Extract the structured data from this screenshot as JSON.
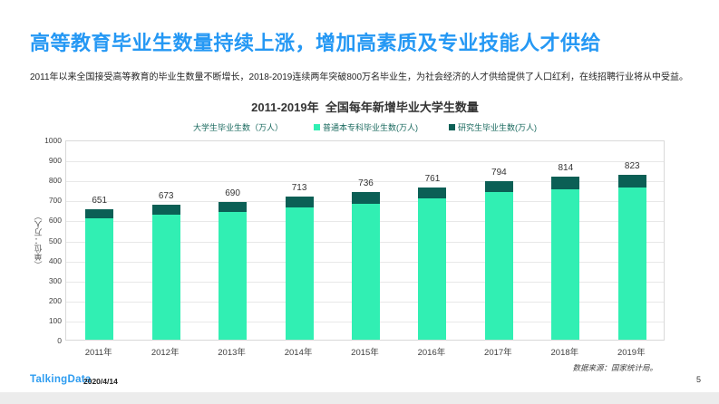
{
  "slide": {
    "title": "高等教育毕业生数量持续上涨，增加高素质及专业技能人才供给",
    "subtitle": "2011年以来全国接受高等教育的毕业生数量不断增长，2018-2019连续两年突破800万名毕业生，为社会经济的人才供给提供了人口红利，在线招聘行业将从中受益。",
    "source_note": "数据来源：国家统计局。",
    "footer": {
      "logo": "TalkingData",
      "date": "2020/4/14",
      "page_number": "5"
    }
  },
  "chart_data": {
    "type": "bar",
    "stacked": true,
    "title": "2011-2019年  全国每年新增毕业大学生数量",
    "axis_title": "大学生毕业生数（万人）",
    "ylabel": "（单位：万人）",
    "categories": [
      "2011年",
      "2012年",
      "2013年",
      "2014年",
      "2015年",
      "2016年",
      "2017年",
      "2018年",
      "2019年"
    ],
    "totals": [
      651,
      673,
      690,
      713,
      736,
      761,
      794,
      814,
      823
    ],
    "series": [
      {
        "name": "普通本专科毕业生数(万人)",
        "color": "#31EFB3",
        "values": [
          608,
          624,
          639,
          659,
          681,
          705,
          736,
          753,
          759
        ]
      },
      {
        "name": "研究生毕业生数(万人)",
        "color": "#0B5F55",
        "values": [
          43,
          49,
          51,
          54,
          55,
          56,
          58,
          61,
          64
        ]
      }
    ],
    "ylim": [
      0,
      1000
    ],
    "ytick_step": 100,
    "grid": true,
    "legend_position": "top"
  }
}
